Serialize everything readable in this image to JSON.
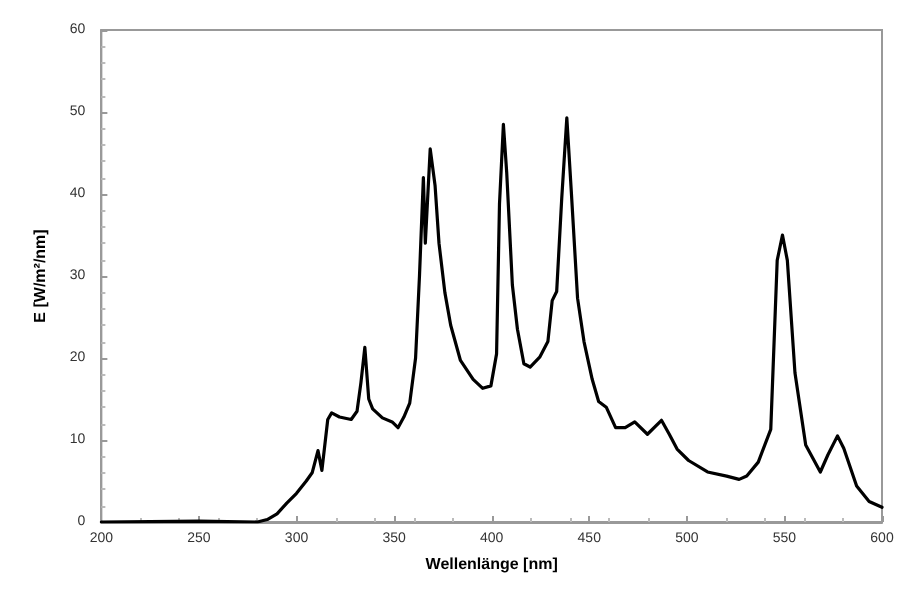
{
  "chart_data": {
    "type": "line",
    "xlabel": "Wellenlänge [nm]",
    "ylabel": "E [W/m²/nm]",
    "xlim": [
      200,
      600
    ],
    "xticks": [
      200,
      250,
      300,
      350,
      400,
      450,
      500,
      550,
      600
    ],
    "ylim": [
      0,
      60
    ],
    "yticks": [
      0,
      10,
      20,
      30,
      40,
      50,
      60
    ],
    "grid": false,
    "marker": "none",
    "line_style": "solid",
    "series": [
      {
        "color": "#000000",
        "x": [
          200,
          250,
          280,
          285,
          290,
          295,
          300,
          305,
          308,
          311,
          313,
          316,
          318,
          322,
          328,
          331,
          333,
          335,
          337,
          339,
          344,
          349,
          352,
          355,
          358,
          361,
          363,
          365,
          366,
          368.5,
          371,
          373,
          376,
          379,
          384,
          390.5,
          395.4,
          399.6,
          402.5,
          404,
          406,
          407.7,
          410.6,
          413.2,
          416.5,
          419.7,
          424.6,
          428.8,
          431,
          433.3,
          435.9,
          438.5,
          440.8,
          444,
          447.3,
          451.5,
          454.8,
          458.7,
          463.5,
          468.4,
          473.3,
          479.8,
          487,
          491,
          495,
          500.9,
          510.6,
          520.4,
          526.8,
          530.7,
          536.6,
          543,
          546.3,
          549,
          551.5,
          555.4,
          560.9,
          568.4,
          572.3,
          577.2,
          580.4,
          587,
          593.4,
          600
        ],
        "values": [
          0,
          0.1,
          0,
          0.3,
          1,
          2.3,
          3.5,
          5,
          6,
          8.7,
          6.3,
          12.5,
          13.3,
          12.8,
          12.5,
          13.5,
          17,
          21.3,
          15,
          13.8,
          12.7,
          12.2,
          11.5,
          12.8,
          14.5,
          20,
          30,
          42,
          34,
          45.5,
          41,
          34,
          28,
          24,
          19.7,
          17.4,
          16.3,
          16.6,
          20.5,
          38.8,
          48.5,
          42.6,
          28.9,
          23.5,
          19.3,
          18.9,
          20.1,
          22,
          27,
          28.1,
          39.5,
          49.3,
          40.3,
          27.3,
          22,
          17.4,
          14.7,
          14,
          11.5,
          11.5,
          12.2,
          10.7,
          12.4,
          10.7,
          8.9,
          7.5,
          6.1,
          5.6,
          5.2,
          5.6,
          7.3,
          11.3,
          31.9,
          35,
          31.9,
          18.2,
          9.4,
          6.1,
          8.2,
          10.5,
          9,
          4.4,
          2.5,
          1.8
        ]
      }
    ]
  }
}
